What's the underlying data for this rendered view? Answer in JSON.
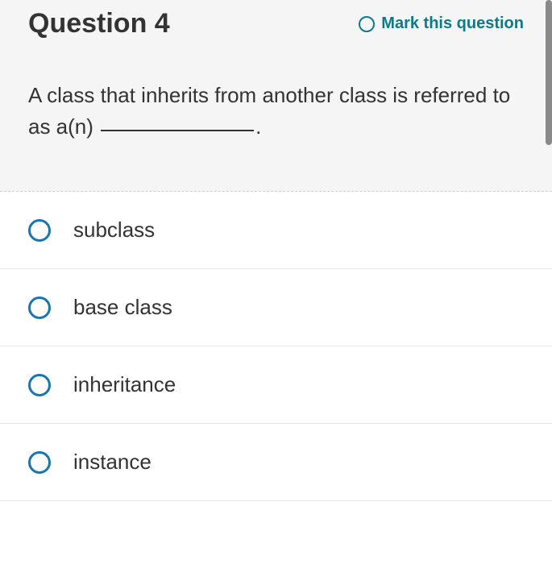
{
  "header": {
    "title": "Question 4",
    "mark_label": "Mark this question"
  },
  "question": {
    "text_before": "A class that inherits from another class is referred to as a(n) ",
    "text_after": "."
  },
  "options": [
    {
      "label": "subclass"
    },
    {
      "label": "base class"
    },
    {
      "label": "inheritance"
    },
    {
      "label": "instance"
    }
  ],
  "colors": {
    "accent": "#0d7a8a",
    "radio_border": "#1976b0",
    "header_bg": "#f5f5f5",
    "text": "#333333",
    "divider": "#e5e5e5",
    "scrollbar": "#8a8a8a"
  }
}
